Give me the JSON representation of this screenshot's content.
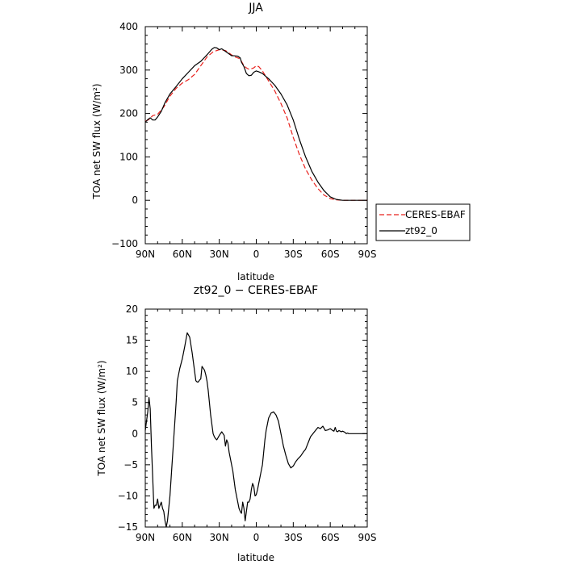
{
  "chart_data": [
    {
      "type": "line",
      "title": "JJA",
      "xlabel": "latitude",
      "ylabel": "TOA net SW flux (W/m²)",
      "xlim": [
        90,
        -90
      ],
      "ylim": [
        -100,
        400
      ],
      "xticks": [
        90,
        60,
        30,
        0,
        -30,
        -60,
        -90
      ],
      "xtick_labels": [
        "90N",
        "60N",
        "30N",
        "0",
        "30S",
        "60S",
        "90S"
      ],
      "yticks": [
        -100,
        0,
        100,
        200,
        300,
        400
      ],
      "ytick_labels": [
        "−100",
        "0",
        "100",
        "200",
        "300",
        "400"
      ],
      "legend_position": "right",
      "series": [
        {
          "name": "CERES-EBAF",
          "color": "#e8201c",
          "dash": "dashed",
          "x": [
            90,
            87,
            84,
            80,
            75,
            70,
            65,
            60,
            55,
            50,
            45,
            40,
            35,
            30,
            25,
            20,
            17,
            14,
            12,
            10,
            8,
            6,
            4,
            2,
            0,
            -2,
            -5,
            -10,
            -15,
            -20,
            -25,
            -30,
            -35,
            -40,
            -45,
            -50,
            -55,
            -60,
            -65,
            -70,
            -75,
            -80,
            -85,
            -90
          ],
          "y": [
            182,
            186,
            195,
            198,
            215,
            240,
            258,
            270,
            278,
            290,
            310,
            330,
            342,
            347,
            345,
            335,
            330,
            327,
            320,
            310,
            305,
            302,
            303,
            305,
            310,
            308,
            298,
            275,
            252,
            223,
            190,
            145,
            105,
            72,
            47,
            27,
            12,
            4,
            1,
            0,
            0,
            0,
            0,
            0
          ]
        },
        {
          "name": "zt92_0",
          "color": "#000000",
          "dash": "solid",
          "x": [
            90,
            88,
            86,
            84,
            82,
            80,
            77,
            74,
            70,
            65,
            60,
            55,
            50,
            45,
            40,
            36,
            34,
            32,
            30,
            28,
            25,
            22,
            20,
            18,
            15,
            13,
            12,
            10,
            8,
            6,
            4,
            2,
            0,
            -2,
            -5,
            -10,
            -15,
            -20,
            -25,
            -30,
            -35,
            -40,
            -45,
            -50,
            -55,
            -60,
            -65,
            -70,
            -75,
            -80,
            -85,
            -90
          ],
          "y": [
            180,
            186,
            190,
            185,
            185,
            192,
            205,
            225,
            245,
            262,
            280,
            295,
            310,
            320,
            335,
            348,
            352,
            351,
            347,
            349,
            343,
            337,
            333,
            333,
            332,
            328,
            318,
            308,
            292,
            287,
            288,
            295,
            298,
            296,
            292,
            280,
            265,
            245,
            220,
            185,
            140,
            100,
            67,
            42,
            22,
            8,
            2,
            0,
            0,
            0,
            0,
            0
          ]
        }
      ]
    },
    {
      "type": "line",
      "title": "zt92_0 − CERES-EBAF",
      "xlabel": "latitude",
      "ylabel": "TOA net SW flux (W/m²)",
      "xlim": [
        90,
        -90
      ],
      "ylim": [
        -15,
        20
      ],
      "xticks": [
        90,
        60,
        30,
        0,
        -30,
        -60,
        -90
      ],
      "xtick_labels": [
        "90N",
        "60N",
        "30N",
        "0",
        "30S",
        "60S",
        "90S"
      ],
      "yticks": [
        -15,
        -10,
        -5,
        0,
        5,
        10,
        15,
        20
      ],
      "ytick_labels": [
        "−15",
        "−10",
        "−5",
        "0",
        "5",
        "10",
        "15",
        "20"
      ],
      "series": [
        {
          "color": "#000000",
          "x": [
            90,
            89,
            88,
            87,
            86,
            85,
            84,
            83,
            82,
            81,
            80,
            79,
            78,
            77,
            76,
            75,
            74,
            73,
            72,
            71,
            70,
            69,
            68,
            67,
            66,
            65,
            64,
            62,
            60,
            58,
            56,
            54,
            52,
            51,
            50,
            49,
            48,
            47,
            46,
            45,
            44,
            43,
            42,
            41,
            40,
            39,
            38,
            37,
            36,
            35,
            34,
            33,
            32,
            30,
            28,
            26,
            25,
            24,
            23,
            22,
            21,
            20,
            19,
            18,
            17,
            16,
            15,
            14,
            13,
            12,
            11,
            10,
            9,
            8,
            7,
            6,
            5,
            4,
            3,
            2,
            1,
            0,
            -1,
            -2,
            -3,
            -4,
            -5,
            -6,
            -7,
            -8,
            -9,
            -10,
            -12,
            -14,
            -16,
            -18,
            -20,
            -22,
            -24,
            -26,
            -28,
            -30,
            -32,
            -34,
            -36,
            -38,
            -40,
            -41,
            -42,
            -43,
            -44,
            -46,
            -48,
            -50,
            -52,
            -54,
            -56,
            -58,
            -60,
            -62,
            -63,
            -64,
            -65,
            -66,
            -67,
            -68,
            -69,
            -70,
            -71,
            -72,
            -73,
            -74,
            -75,
            -76,
            -78,
            -80,
            -84,
            -90
          ],
          "y": [
            0.5,
            2,
            3.5,
            5.8,
            4,
            -2,
            -7,
            -12,
            -11.5,
            -11.5,
            -10.5,
            -12,
            -11.5,
            -11,
            -12,
            -12.5,
            -14,
            -15,
            -14,
            -12,
            -10,
            -7,
            -4,
            -1,
            2,
            5,
            8.5,
            10.5,
            12,
            14,
            16.2,
            15.5,
            13,
            11.5,
            10,
            8.5,
            8.3,
            8.3,
            8.6,
            8.8,
            10.8,
            10.5,
            10.2,
            9.5,
            8.5,
            7,
            5,
            3,
            1.5,
            0,
            -0.5,
            -0.8,
            -1,
            -0.3,
            0.3,
            -0.3,
            -2,
            -1,
            -1.5,
            -3,
            -4,
            -5,
            -6,
            -7.5,
            -9,
            -10,
            -11,
            -12,
            -12.5,
            -12.8,
            -11,
            -12,
            -14,
            -12.5,
            -11,
            -11,
            -10.5,
            -9,
            -8,
            -8.5,
            -10,
            -9.8,
            -9,
            -8,
            -7,
            -6,
            -5,
            -3,
            -1,
            0.5,
            1.5,
            2.5,
            3.3,
            3.5,
            3,
            2,
            0,
            -2,
            -3.5,
            -4.8,
            -5.5,
            -5.2,
            -4.5,
            -4,
            -3.6,
            -3,
            -2.5,
            -2,
            -1.5,
            -1,
            -0.5,
            0,
            0.5,
            1,
            0.8,
            1.2,
            0.5,
            0.6,
            0.8,
            0.5,
            0.4,
            1.0,
            0.4,
            0.3,
            0.5,
            0.4,
            0.3,
            0.4,
            0.3,
            0.2,
            0.0,
            0.1,
            0.0,
            0,
            0,
            0,
            0,
            0
          ]
        }
      ]
    }
  ]
}
